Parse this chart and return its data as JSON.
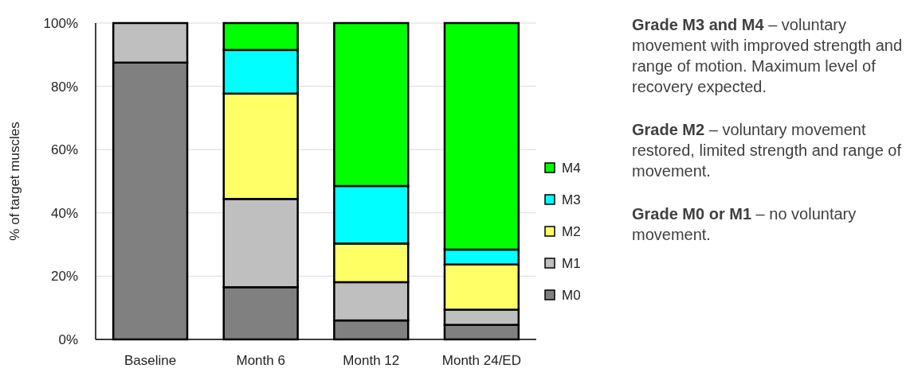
{
  "chart_data": {
    "type": "bar",
    "stacked": true,
    "ylabel": "% of target muscles",
    "categories": [
      "Baseline",
      "Month 6",
      "Month 12",
      "Month 24/ED"
    ],
    "series": [
      {
        "name": "M0",
        "color": "#808080",
        "values": [
          87.5,
          16.5,
          6.0,
          4.6
        ]
      },
      {
        "name": "M1",
        "color": "#bfbfbf",
        "values": [
          12.5,
          27.9,
          12.1,
          4.8
        ]
      },
      {
        "name": "M2",
        "color": "#ffff66",
        "values": [
          0,
          33.3,
          12.2,
          14.3
        ]
      },
      {
        "name": "M3",
        "color": "#00ffff",
        "values": [
          0,
          13.8,
          18.2,
          4.7
        ]
      },
      {
        "name": "M4",
        "color": "#00ff00",
        "values": [
          0,
          8.5,
          51.5,
          71.6
        ]
      }
    ],
    "ylim": [
      0,
      100
    ],
    "yticks": [
      {
        "value": 0,
        "label": "0%"
      },
      {
        "value": 20,
        "label": "20%"
      },
      {
        "value": 40,
        "label": "40%"
      },
      {
        "value": 60,
        "label": "60%"
      },
      {
        "value": 80,
        "label": "80%"
      },
      {
        "value": 100,
        "label": "100%"
      }
    ],
    "grid": "y",
    "legend": "right",
    "annotations": [
      "Grade M3 and M4 – voluntary movement with improved strength and range of motion. Maximum level of recovery expected.",
      "Grade M2 – voluntary movement restored, limited strength and range of movement.",
      "Grade M0 or M1 – no voluntary movement."
    ]
  }
}
